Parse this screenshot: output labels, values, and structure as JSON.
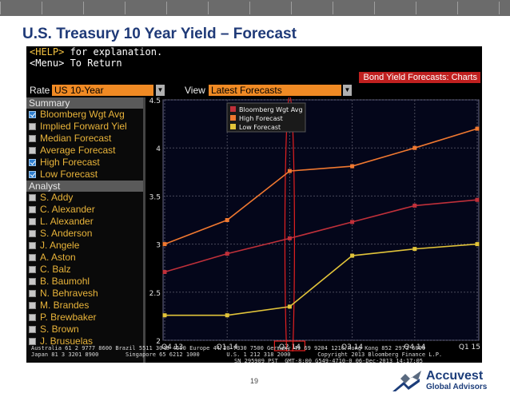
{
  "slide": {
    "title": "U.S. Treasury 10 Year Yield – Forecast",
    "page_number": "19"
  },
  "logo": {
    "name": "Accuvest",
    "subtitle": "Global Advisors"
  },
  "terminal": {
    "help_key": "<HELP>",
    "help_rest": " for explanation.",
    "menu_line": "<Menu> To Return",
    "panel_title": "Bond Yield Forecasts: Charts",
    "rate_label": "Rate",
    "rate_value": "US 10-Year",
    "view_label": "View",
    "view_value": "Latest Forecasts",
    "footer_line1": "Australia 61 2 9777 8600 Brazil 5511 3048 4500 Europe 44 20 7330 7500 Germany 49 69 9204 1210 Hong Kong 852 2977 6000",
    "footer_line2": "Japan 81 3 3201 8900        Singapore 65 6212 1000        U.S. 1 212 318 2000        Copyright 2013 Bloomberg Finance L.P.",
    "footer_line3": "SN 295909 PST  GMT-8:00 G549-4710-0 06-Dec-2013 14:17:05"
  },
  "summary": {
    "header": "Summary",
    "items": [
      {
        "label": "Bloomberg Wgt Avg",
        "checked": true
      },
      {
        "label": "Implied Forward Yiel",
        "checked": false
      },
      {
        "label": "Median Forecast",
        "checked": false
      },
      {
        "label": "Average Forecast",
        "checked": false
      },
      {
        "label": "High Forecast",
        "checked": true
      },
      {
        "label": "Low Forecast",
        "checked": true
      }
    ]
  },
  "analyst": {
    "header": "Analyst",
    "items": [
      {
        "label": "S. Addy",
        "checked": false
      },
      {
        "label": "C. Alexander",
        "checked": false
      },
      {
        "label": "L. Alexander",
        "checked": false
      },
      {
        "label": "S. Anderson",
        "checked": false
      },
      {
        "label": "J. Angele",
        "checked": false
      },
      {
        "label": "A. Aston",
        "checked": false
      },
      {
        "label": "C. Balz",
        "checked": false
      },
      {
        "label": "B. Baumohl",
        "checked": false
      },
      {
        "label": "N. Behravesh",
        "checked": false
      },
      {
        "label": "M. Brandes",
        "checked": false
      },
      {
        "label": "P. Brewbaker",
        "checked": false
      },
      {
        "label": "S. Brown",
        "checked": false
      },
      {
        "label": "J. Brusuelas",
        "checked": false
      }
    ]
  },
  "colors": {
    "avg": "#c0303a",
    "high": "#f07830",
    "low": "#e2c43a",
    "highlight": "#e32020"
  },
  "chart_data": {
    "type": "line",
    "categories": [
      "Q4 13",
      "Q1 14",
      "Q2 14",
      "Q3 14",
      "Q4 14",
      "Q1 15"
    ],
    "series": [
      {
        "name": "Bloomberg Wgt Avg",
        "values": [
          2.71,
          2.9,
          3.06,
          3.23,
          3.4,
          3.46
        ]
      },
      {
        "name": "High Forecast",
        "values": [
          3.0,
          3.25,
          3.76,
          3.81,
          4.0,
          4.2
        ]
      },
      {
        "name": "Low Forecast",
        "values": [
          2.26,
          2.26,
          2.35,
          2.88,
          2.95,
          3.0
        ]
      }
    ],
    "y_ticks": [
      "2",
      "2.5",
      "3",
      "3.5",
      "4",
      "4.5"
    ],
    "ylim": [
      2,
      4.5
    ],
    "highlight_category": "Q2 14",
    "legend_position": "top-left"
  }
}
